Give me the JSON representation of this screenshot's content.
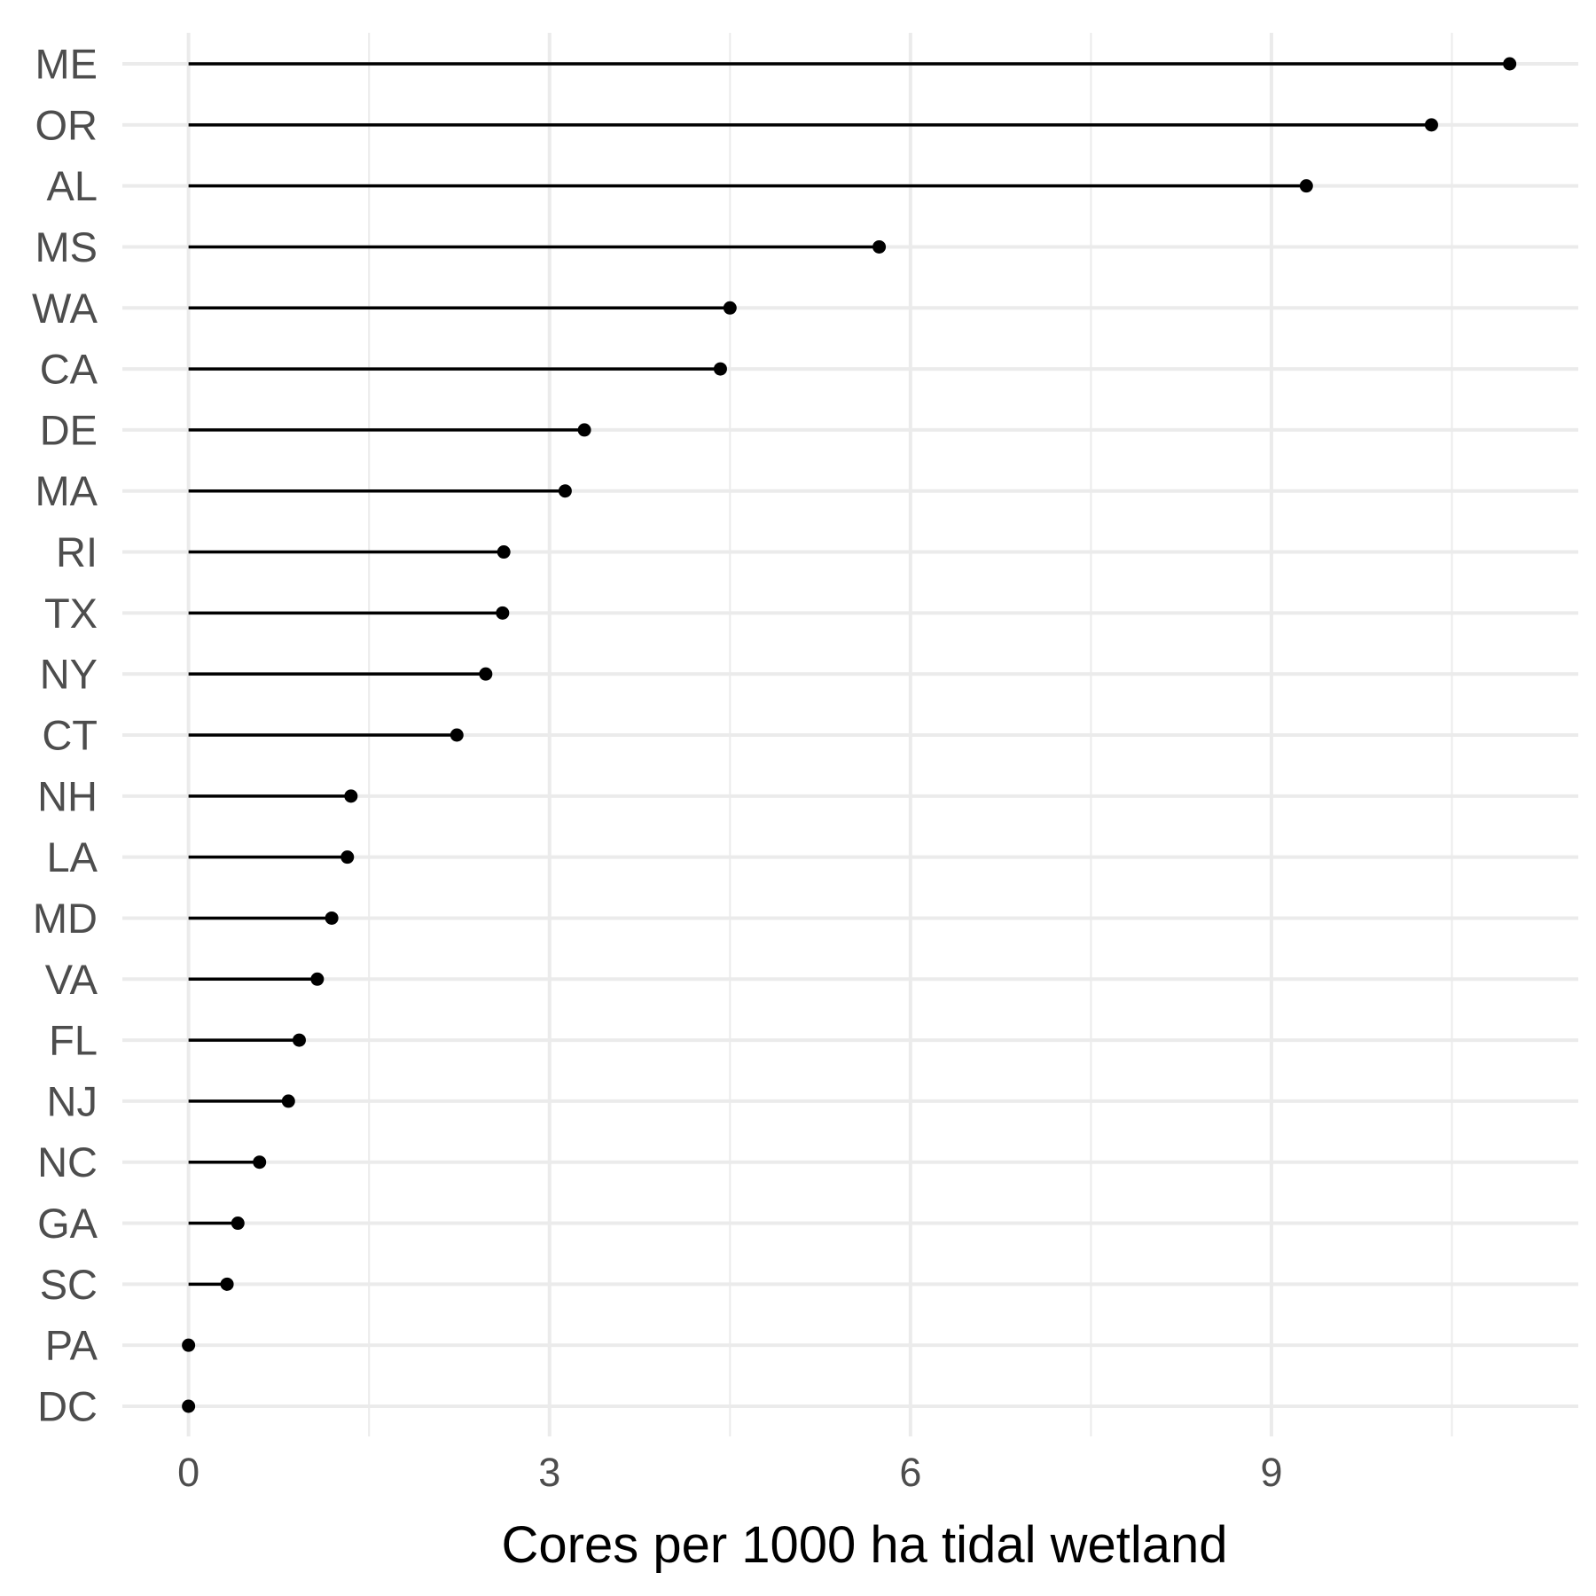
{
  "chart_data": {
    "type": "lollipop",
    "title": "",
    "xlabel": "Cores per 1000 ha tidal wetland",
    "ylabel": "",
    "xlim": [
      -0.55,
      11.55
    ],
    "xticks": [
      0,
      3,
      6,
      9
    ],
    "grid": true,
    "legend": "none",
    "categories": [
      "ME",
      "OR",
      "AL",
      "MS",
      "WA",
      "CA",
      "DE",
      "MA",
      "RI",
      "TX",
      "NY",
      "CT",
      "NH",
      "LA",
      "MD",
      "VA",
      "FL",
      "NJ",
      "NC",
      "GA",
      "SC",
      "PA",
      "DC"
    ],
    "values": [
      10.98,
      10.33,
      9.29,
      5.74,
      4.5,
      4.42,
      3.29,
      3.13,
      2.62,
      2.61,
      2.47,
      2.23,
      1.35,
      1.32,
      1.19,
      1.07,
      0.92,
      0.83,
      0.59,
      0.41,
      0.32,
      0.0,
      0.0
    ],
    "colors": {
      "mark": "#000000",
      "grid": "#ebebeb",
      "tick_text": "#4d4d4d",
      "title_text": "#000000",
      "background": "#ffffff"
    }
  }
}
